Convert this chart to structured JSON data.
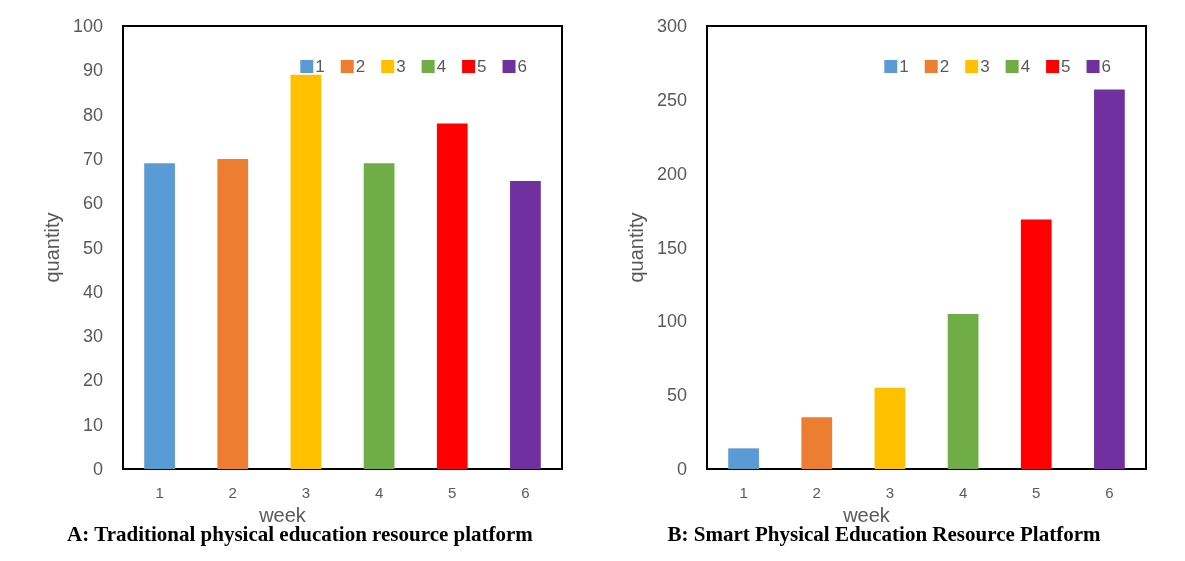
{
  "chart_data": [
    {
      "type": "bar",
      "title": "A: Traditional physical education resource platform",
      "xlabel": "week",
      "ylabel": "quantity",
      "categories": [
        "1",
        "2",
        "3",
        "4",
        "5",
        "6"
      ],
      "stacked": true,
      "ylim": [
        0,
        100
      ],
      "yticks": [
        0,
        10,
        20,
        30,
        40,
        50,
        60,
        70,
        80,
        90,
        100
      ],
      "grid": false,
      "legend": "top right",
      "series": [
        {
          "name": "1",
          "color": "#5b9bd5",
          "values": [
            69,
            null,
            null,
            null,
            null,
            null
          ]
        },
        {
          "name": "2",
          "color": "#ed7d31",
          "values": [
            null,
            70,
            null,
            null,
            null,
            null
          ]
        },
        {
          "name": "3",
          "color": "#ffc000",
          "values": [
            null,
            null,
            89,
            null,
            null,
            null
          ]
        },
        {
          "name": "4",
          "color": "#70ad47",
          "values": [
            null,
            null,
            null,
            69,
            null,
            null
          ]
        },
        {
          "name": "5",
          "color": "#ff0000",
          "values": [
            null,
            null,
            null,
            null,
            78,
            null
          ]
        },
        {
          "name": "6",
          "color": "#7030a0",
          "values": [
            null,
            null,
            null,
            null,
            null,
            65
          ]
        }
      ]
    },
    {
      "type": "bar",
      "title": "B: Smart Physical Education Resource Platform",
      "xlabel": "week",
      "ylabel": "quantity",
      "categories": [
        "1",
        "2",
        "3",
        "4",
        "5",
        "6"
      ],
      "stacked": true,
      "ylim": [
        0,
        300
      ],
      "yticks": [
        0,
        50,
        100,
        150,
        200,
        250,
        300
      ],
      "grid": false,
      "legend": "top right",
      "series": [
        {
          "name": "1",
          "color": "#5b9bd5",
          "values": [
            14,
            null,
            null,
            null,
            null,
            null
          ]
        },
        {
          "name": "2",
          "color": "#ed7d31",
          "values": [
            null,
            35,
            null,
            null,
            null,
            null
          ]
        },
        {
          "name": "3",
          "color": "#ffc000",
          "values": [
            null,
            null,
            55,
            null,
            null,
            null
          ]
        },
        {
          "name": "4",
          "color": "#70ad47",
          "values": [
            null,
            null,
            null,
            105,
            null,
            null
          ]
        },
        {
          "name": "5",
          "color": "#ff0000",
          "values": [
            null,
            null,
            null,
            null,
            169,
            null
          ]
        },
        {
          "name": "6",
          "color": "#7030a0",
          "values": [
            null,
            null,
            null,
            null,
            null,
            257
          ]
        }
      ]
    }
  ]
}
